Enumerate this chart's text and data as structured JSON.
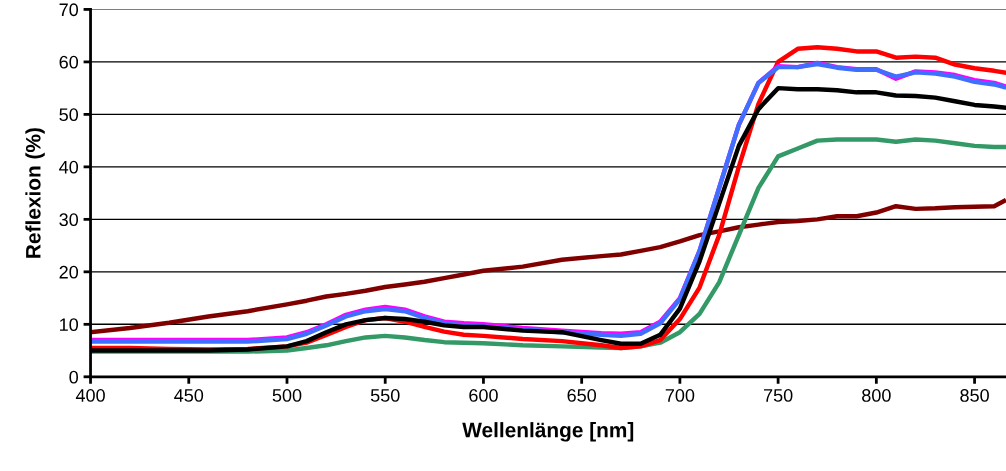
{
  "chart_data": {
    "type": "line",
    "xlabel": "Wellenlänge [nm]",
    "ylabel": "Reflexion (%)",
    "x": [
      400,
      420,
      440,
      460,
      480,
      500,
      510,
      520,
      530,
      540,
      550,
      560,
      570,
      580,
      590,
      600,
      620,
      640,
      660,
      670,
      680,
      690,
      700,
      710,
      720,
      730,
      740,
      750,
      760,
      770,
      780,
      790,
      800,
      810,
      820,
      830,
      840,
      850,
      860,
      865
    ],
    "xlim": [
      400,
      866
    ],
    "xticks": [
      400,
      450,
      500,
      550,
      600,
      650,
      700,
      750,
      800,
      850
    ],
    "ylim": [
      0,
      70
    ],
    "yticks": [
      0,
      10,
      20,
      30,
      40,
      50,
      60,
      70
    ],
    "grid": "y",
    "legend": false,
    "marker": "none",
    "line_style": "solid",
    "series": [
      {
        "color": "#800000",
        "values": [
          8.5,
          9.3,
          10.3,
          11.5,
          12.5,
          13.8,
          14.5,
          15.3,
          15.8,
          16.4,
          17.1,
          17.6,
          18.1,
          18.8,
          19.5,
          20.2,
          21,
          22.3,
          23,
          23.3,
          24,
          24.7,
          25.8,
          27,
          27.7,
          28.5,
          29,
          29.5,
          29.7,
          30,
          30.6,
          30.6,
          31.3,
          32.5,
          32,
          32.1,
          32.3,
          32.4,
          32.5,
          33.5
        ]
      },
      {
        "color": "#339966",
        "values": [
          4.8,
          4.8,
          4.8,
          4.8,
          4.8,
          5,
          5.5,
          6,
          6.8,
          7.5,
          7.8,
          7.5,
          7,
          6.6,
          6.5,
          6.4,
          6,
          5.8,
          5.6,
          5.5,
          5.8,
          6.5,
          8.5,
          12,
          18,
          27,
          36,
          42,
          43.5,
          45,
          45.2,
          45.2,
          45.2,
          44.8,
          45.2,
          45,
          44.5,
          44,
          43.8,
          43.8
        ]
      },
      {
        "color": "#ff0000",
        "values": [
          5.5,
          5.5,
          5.3,
          5.2,
          5.3,
          5.8,
          6.5,
          8,
          9.5,
          10.8,
          11.2,
          10.5,
          9.5,
          8.6,
          8,
          7.8,
          7.2,
          6.8,
          6,
          5.5,
          5.8,
          7,
          11,
          17,
          27,
          40,
          52,
          60,
          62.5,
          62.8,
          62.5,
          62,
          62,
          60.8,
          61,
          60.8,
          59.5,
          58.8,
          58.3,
          58
        ]
      },
      {
        "color": "#ff00ff",
        "values": [
          7,
          7,
          7,
          7,
          7,
          7.5,
          8.5,
          10,
          11.8,
          12.8,
          13.3,
          12.8,
          11.5,
          10.5,
          10.2,
          10,
          9.3,
          8.8,
          8.3,
          8.2,
          8.5,
          10.5,
          15,
          24,
          36,
          48,
          56,
          59.2,
          59,
          59.8,
          59,
          58.6,
          58.6,
          56.8,
          58.2,
          58,
          57.5,
          56.5,
          56,
          55.4
        ]
      },
      {
        "color": "#3f6fff",
        "values": [
          6.7,
          6.7,
          6.7,
          6.7,
          6.7,
          7.2,
          8.2,
          9.8,
          11.5,
          12.5,
          12.9,
          12.5,
          11.2,
          10.2,
          9.8,
          9.6,
          9,
          8.5,
          8,
          7.8,
          8.2,
          10.2,
          14.8,
          24,
          36,
          48,
          56,
          59,
          59,
          59.6,
          58.9,
          58.5,
          58.5,
          57.2,
          58,
          57.8,
          57.2,
          56.2,
          55.7,
          55.2
        ]
      },
      {
        "color": "#000000",
        "values": [
          5,
          5,
          5,
          5,
          5.2,
          5.8,
          6.8,
          8.5,
          10,
          10.8,
          11.2,
          11,
          10.5,
          9.8,
          9.5,
          9.5,
          8.8,
          8.5,
          7,
          6.3,
          6.3,
          8,
          13,
          22,
          33,
          44,
          51,
          55,
          54.8,
          54.8,
          54.6,
          54.2,
          54.2,
          53.6,
          53.5,
          53.2,
          52.5,
          51.8,
          51.5,
          51.3
        ]
      }
    ]
  }
}
